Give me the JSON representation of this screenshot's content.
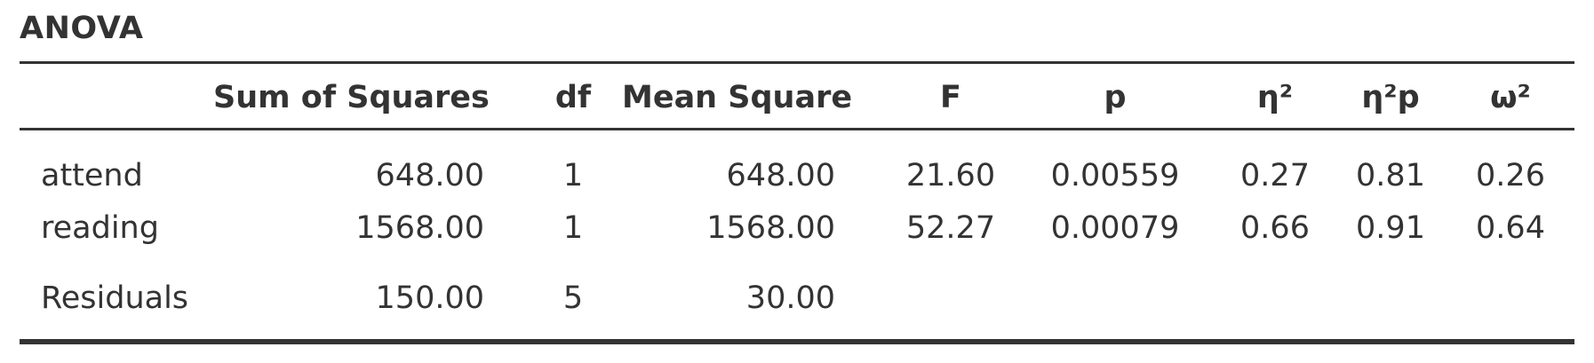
{
  "title": "ANOVA",
  "columns": {
    "term": "",
    "sum_of_squares": "Sum of Squares",
    "df": "df",
    "mean_square": "Mean Square",
    "f": "F",
    "p": "p",
    "eta_sq": "η²",
    "eta_sq_p": "η²p",
    "omega_sq": "ω²"
  },
  "rows": [
    {
      "term": "attend",
      "sum_of_squares": "648.00",
      "df": "1",
      "mean_square": "648.00",
      "f": "21.60",
      "p": "0.00559",
      "eta_sq": "0.27",
      "eta_sq_p": "0.81",
      "omega_sq": "0.26"
    },
    {
      "term": "reading",
      "sum_of_squares": "1568.00",
      "df": "1",
      "mean_square": "1568.00",
      "f": "52.27",
      "p": "0.00079",
      "eta_sq": "0.66",
      "eta_sq_p": "0.91",
      "omega_sq": "0.64"
    },
    {
      "term": "Residuals",
      "sum_of_squares": "150.00",
      "df": "5",
      "mean_square": "30.00",
      "f": "",
      "p": "",
      "eta_sq": "",
      "eta_sq_p": "",
      "omega_sq": ""
    }
  ]
}
